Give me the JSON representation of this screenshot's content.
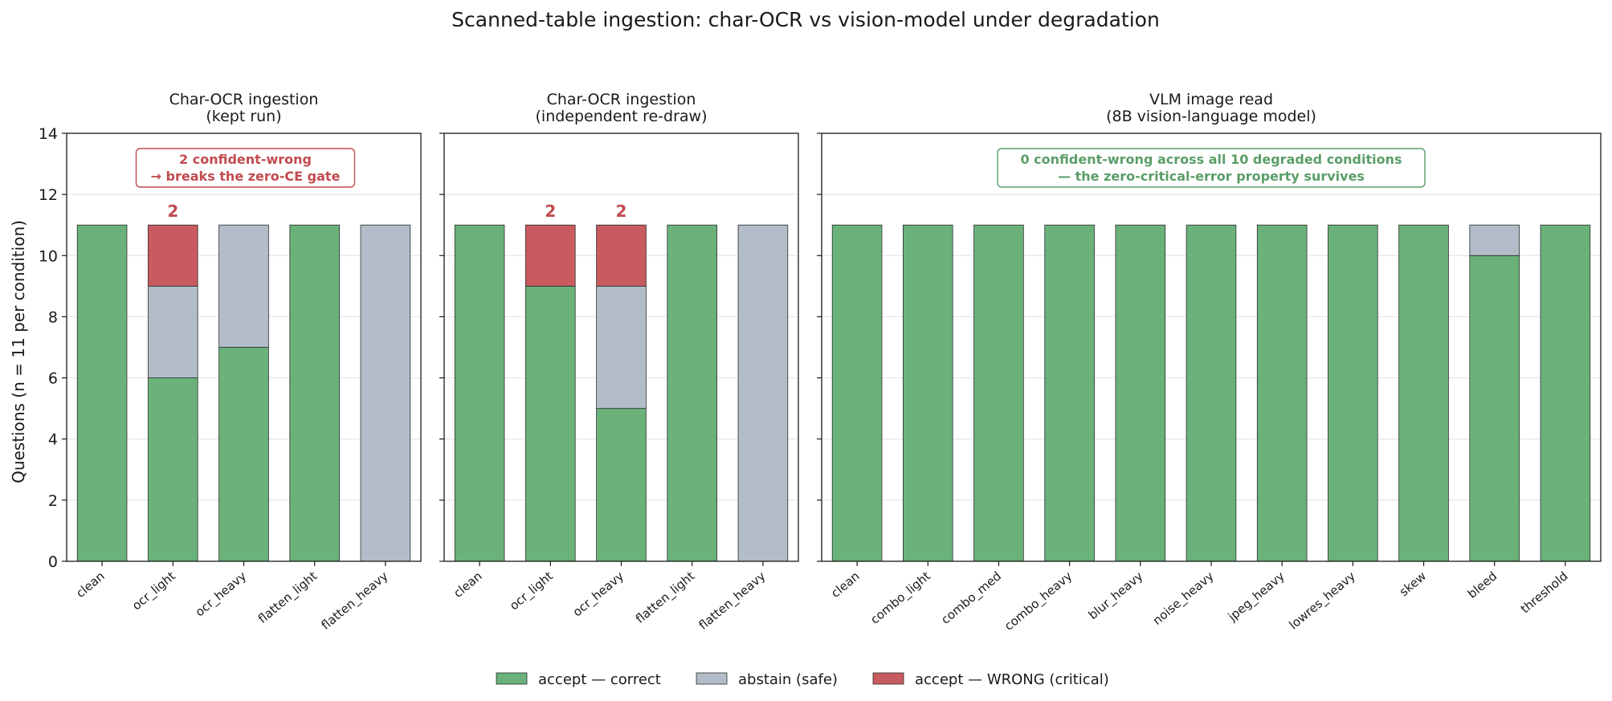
{
  "figure": {
    "title": "Scanned-table ingestion: char-OCR vs vision-model under degradation",
    "ylabel": "Questions (n = 11 per condition)"
  },
  "colors": {
    "correct": "#6ab27a",
    "abstain": "#b2bdc9",
    "wrong": "#c85b60",
    "wrong_text": "#c24a4f",
    "good_text": "#5a9e68"
  },
  "legend": {
    "placement": "bottom-center",
    "items": [
      {
        "key": "correct",
        "label": "accept — correct"
      },
      {
        "key": "abstain",
        "label": "abstain (safe)"
      },
      {
        "key": "wrong",
        "label": "accept — WRONG (critical)"
      }
    ]
  },
  "chart_data": [
    {
      "type": "bar",
      "stacked": true,
      "title_lines": [
        "Char-OCR ingestion",
        "(kept run)"
      ],
      "ylim": [
        0,
        14
      ],
      "yticks": [
        0,
        2,
        4,
        6,
        8,
        10,
        12,
        14
      ],
      "grid": true,
      "categories": [
        "clean",
        "ocr_light",
        "ocr_heavy",
        "flatten_light",
        "flatten_heavy"
      ],
      "series": [
        {
          "key": "correct",
          "name": "accept — correct",
          "values": [
            11,
            6,
            7,
            11,
            0
          ]
        },
        {
          "key": "abstain",
          "name": "abstain (safe)",
          "values": [
            0,
            3,
            4,
            0,
            11
          ]
        },
        {
          "key": "wrong",
          "name": "accept — WRONG (critical)",
          "values": [
            0,
            2,
            0,
            0,
            0
          ]
        }
      ],
      "wrong_labels": [
        "",
        "2",
        "",
        "",
        ""
      ],
      "annotation": {
        "lines": [
          "2 confident-wrong",
          "→ breaks the zero-CE gate"
        ],
        "style": "bad"
      }
    },
    {
      "type": "bar",
      "stacked": true,
      "title_lines": [
        "Char-OCR ingestion",
        "(independent re-draw)"
      ],
      "ylim": [
        0,
        14
      ],
      "yticks": [
        0,
        2,
        4,
        6,
        8,
        10,
        12,
        14
      ],
      "grid": true,
      "categories": [
        "clean",
        "ocr_light",
        "ocr_heavy",
        "flatten_light",
        "flatten_heavy"
      ],
      "series": [
        {
          "key": "correct",
          "name": "accept — correct",
          "values": [
            11,
            9,
            5,
            11,
            0
          ]
        },
        {
          "key": "abstain",
          "name": "abstain (safe)",
          "values": [
            0,
            0,
            4,
            0,
            11
          ]
        },
        {
          "key": "wrong",
          "name": "accept — WRONG (critical)",
          "values": [
            0,
            2,
            2,
            0,
            0
          ]
        }
      ],
      "wrong_labels": [
        "",
        "2",
        "2",
        "",
        ""
      ]
    },
    {
      "type": "bar",
      "stacked": true,
      "title_lines": [
        "VLM image read",
        "(8B vision-language model)"
      ],
      "ylim": [
        0,
        14
      ],
      "yticks": [
        0,
        2,
        4,
        6,
        8,
        10,
        12,
        14
      ],
      "grid": true,
      "categories": [
        "clean",
        "combo_light",
        "combo_med",
        "combo_heavy",
        "blur_heavy",
        "noise_heavy",
        "jpeg_heavy",
        "lowres_heavy",
        "skew",
        "bleed",
        "threshold"
      ],
      "series": [
        {
          "key": "correct",
          "name": "accept — correct",
          "values": [
            11,
            11,
            11,
            11,
            11,
            11,
            11,
            11,
            11,
            10,
            11
          ]
        },
        {
          "key": "abstain",
          "name": "abstain (safe)",
          "values": [
            0,
            0,
            0,
            0,
            0,
            0,
            0,
            0,
            0,
            1,
            0
          ]
        },
        {
          "key": "wrong",
          "name": "accept — WRONG (critical)",
          "values": [
            0,
            0,
            0,
            0,
            0,
            0,
            0,
            0,
            0,
            0,
            0
          ]
        }
      ],
      "wrong_labels": [
        "",
        "",
        "",
        "",
        "",
        "",
        "",
        "",
        "",
        "",
        ""
      ],
      "annotation": {
        "lines": [
          "0 confident-wrong across all 10 degraded conditions",
          "— the zero-critical-error property survives"
        ],
        "style": "good"
      }
    }
  ]
}
